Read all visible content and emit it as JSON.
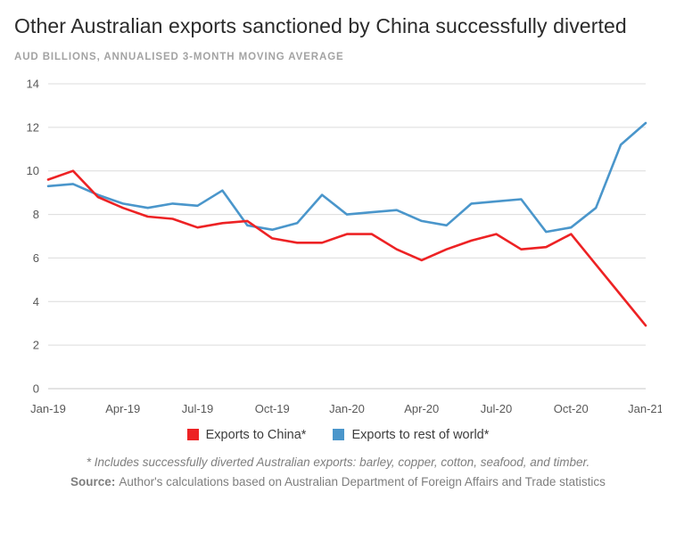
{
  "header": {
    "title": "Other Australian exports sanctioned by China successfully diverted",
    "subtitle": "AUD BILLIONS, ANNUALISED 3-MONTH MOVING AVERAGE"
  },
  "chart_data": {
    "type": "line",
    "x": [
      "Jan-19",
      "Feb-19",
      "Mar-19",
      "Apr-19",
      "May-19",
      "Jun-19",
      "Jul-19",
      "Aug-19",
      "Sep-19",
      "Oct-19",
      "Nov-19",
      "Dec-19",
      "Jan-20",
      "Feb-20",
      "Mar-20",
      "Apr-20",
      "May-20",
      "Jun-20",
      "Jul-20",
      "Aug-20",
      "Sep-20",
      "Oct-20",
      "Nov-20",
      "Dec-20",
      "Jan-21"
    ],
    "x_tick_labels": [
      "Jan-19",
      "Apr-19",
      "Jul-19",
      "Oct-19",
      "Jan-20",
      "Apr-20",
      "Jul-20",
      "Oct-20",
      "Jan-21"
    ],
    "ylim": [
      0,
      14
    ],
    "y_ticks": [
      0,
      2,
      4,
      6,
      8,
      10,
      12,
      14
    ],
    "grid": "horizontal",
    "legend_position": "bottom",
    "title": "Other Australian exports sanctioned by China successfully diverted",
    "ylabel": "AUD billions, annualised 3-month moving average",
    "series": [
      {
        "name": "Exports to China*",
        "color": "#ed2224",
        "values": [
          9.6,
          10.0,
          8.8,
          8.3,
          7.9,
          7.8,
          7.4,
          7.6,
          7.7,
          6.9,
          6.7,
          6.7,
          7.1,
          7.1,
          6.4,
          5.9,
          6.4,
          6.8,
          7.1,
          6.4,
          6.5,
          7.1,
          5.7,
          4.3,
          2.9
        ]
      },
      {
        "name": "Exports to rest of world*",
        "color": "#4a96cb",
        "values": [
          9.3,
          9.4,
          8.9,
          8.5,
          8.3,
          8.5,
          8.4,
          9.1,
          7.5,
          7.3,
          7.6,
          8.9,
          8.0,
          8.1,
          8.2,
          7.7,
          7.5,
          8.5,
          8.6,
          8.7,
          7.2,
          7.4,
          8.3,
          11.2,
          12.2
        ]
      }
    ]
  },
  "footer": {
    "footnote": "* Includes successfully diverted Australian exports: barley, copper, cotton, seafood, and timber.",
    "source_label": "Source:",
    "source_text": "Author's calculations based on Australian Department of Foreign Affairs and Trade statistics"
  }
}
